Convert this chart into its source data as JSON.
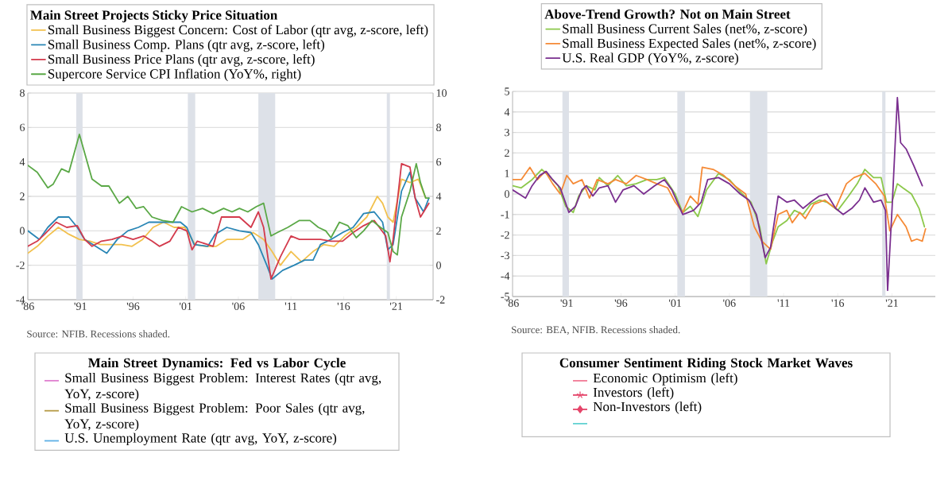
{
  "chart_data": [
    {
      "type": "line",
      "title": "Main Street Projects Sticky Price Situation",
      "legend": "top",
      "grid": "y",
      "xlim": [
        1986,
        2024.5
      ],
      "ylim": [
        -4,
        8
      ],
      "y2lim": [
        -2,
        10
      ],
      "xticks": [
        {
          "value": 1986,
          "label": "'86"
        },
        {
          "value": 1991,
          "label": "'91"
        },
        {
          "value": 1996,
          "label": "'96"
        },
        {
          "value": 2001,
          "label": "'01"
        },
        {
          "value": 2006,
          "label": "'06"
        },
        {
          "value": 2011,
          "label": "'11"
        },
        {
          "value": 2016,
          "label": "'16"
        },
        {
          "value": 2021,
          "label": "'21"
        }
      ],
      "yticks": [
        -4,
        -2,
        0,
        2,
        4,
        6,
        8
      ],
      "y2ticks": [
        -2,
        0,
        2,
        4,
        6,
        8,
        10
      ],
      "bands": [
        {
          "axis": "x",
          "from": 1990.6,
          "to": 1991.2,
          "color": "#dde1e8"
        },
        {
          "axis": "x",
          "from": 2001.2,
          "to": 2001.9,
          "color": "#dde1e8"
        },
        {
          "axis": "x",
          "from": 2007.9,
          "to": 2009.5,
          "color": "#dde1e8"
        },
        {
          "axis": "x",
          "from": 2020.1,
          "to": 2020.4,
          "color": "#dde1e8"
        }
      ],
      "annotations": [
        "Source: NFIB. Recessions shaded."
      ],
      "series": [
        {
          "name": "Small Business Biggest Concern: Cost of Labor (qtr avg, z-score, left)",
          "color": "#f2c14e",
          "x": [
            1986.0,
            1986.9,
            1987.9,
            1988.9,
            1989.9,
            1990.9,
            1991.9,
            1992.9,
            1993.9,
            1994.9,
            1995.9,
            1996.9,
            1997.9,
            1998.9,
            1999.9,
            2000.9,
            2001.9,
            2002.9,
            2003.9,
            2004.9,
            2006.4,
            2007.4,
            2008.4,
            2009.2,
            2010.0,
            2011.0,
            2012.0,
            2013.1,
            2014.1,
            2015.1,
            2016.1,
            2017.2,
            2018.2,
            2019.2,
            2019.7,
            2020.2,
            2020.7,
            2021.5,
            2022.3,
            2023.1,
            2023.8
          ],
          "values": [
            -1.3,
            -0.9,
            -0.3,
            0.2,
            -0.2,
            -0.5,
            -0.6,
            -0.8,
            -0.8,
            -0.8,
            -0.9,
            -0.5,
            0.2,
            0.5,
            0.2,
            0.2,
            -0.8,
            -0.9,
            -0.9,
            -0.5,
            -0.5,
            -0.1,
            -0.5,
            -1.2,
            -2.0,
            -1.2,
            -1.8,
            -1.2,
            -0.8,
            -0.9,
            -0.3,
            0.2,
            0.8,
            2.0,
            1.6,
            0.8,
            0.5,
            3.0,
            2.8,
            3.0,
            1.9
          ]
        },
        {
          "name": "Small Business Comp. Plans (qtr avg, z-score, left)",
          "color": "#2a86b5",
          "x": [
            1986.0,
            1987.1,
            1987.9,
            1988.9,
            1989.9,
            1990.7,
            1991.4,
            1992.2,
            1993.5,
            1994.5,
            1995.5,
            1996.5,
            1997.5,
            1998.5,
            1999.5,
            2000.5,
            2001.1,
            2001.8,
            2003.1,
            2003.8,
            2004.9,
            2006.1,
            2007.2,
            2007.9,
            2008.7,
            2009.2,
            2010.2,
            2011.3,
            2012.3,
            2013.1,
            2013.8,
            2014.8,
            2015.9,
            2016.9,
            2017.9,
            2018.9,
            2019.7,
            2020.2,
            2020.7,
            2021.5,
            2022.3,
            2022.8,
            2023.6,
            2024.1
          ],
          "values": [
            0,
            -0.5,
            0.2,
            0.8,
            0.8,
            0.2,
            -0.5,
            -0.8,
            -1.3,
            -0.5,
            0,
            0.2,
            0.5,
            0.5,
            0.5,
            0.5,
            0.2,
            -0.8,
            -0.9,
            -0.2,
            0.2,
            0.0,
            -0.1,
            -0.8,
            -2.0,
            -2.8,
            -2.3,
            -2.0,
            -1.7,
            -1.7,
            -0.8,
            -0.5,
            -0.1,
            0.2,
            1.0,
            1.1,
            0.5,
            -1.1,
            -0.8,
            2.3,
            3.4,
            1.9,
            1.1,
            1.9
          ]
        },
        {
          "name": "Small Business Price Plans (qtr avg, z-score, left)",
          "color": "#d33a4c",
          "x": [
            1986.0,
            1986.9,
            1987.6,
            1988.7,
            1989.7,
            1990.7,
            1991.4,
            1992.1,
            1993.0,
            1994.0,
            1995.0,
            1996.0,
            1997.0,
            1997.8,
            1998.5,
            1999.5,
            2000.3,
            2001.1,
            2001.6,
            2002.1,
            2003.1,
            2003.6,
            2004.4,
            2005.4,
            2006.1,
            2007.2,
            2007.9,
            2008.4,
            2009.1,
            2010.0,
            2011.0,
            2011.8,
            2012.8,
            2013.8,
            2014.8,
            2015.9,
            2016.9,
            2017.9,
            2018.9,
            2020.0,
            2020.4,
            2020.7,
            2021.5,
            2022.3,
            2022.8,
            2023.3,
            2023.8,
            2024.1
          ],
          "values": [
            -0.9,
            -0.6,
            -0.2,
            0.5,
            0.2,
            0.3,
            -0.5,
            -0.9,
            -0.6,
            -0.5,
            -0.3,
            -0.5,
            -0.3,
            -0.6,
            -0.9,
            -0.6,
            0.2,
            0.0,
            -1.1,
            -0.6,
            -0.8,
            -0.9,
            0.8,
            0.8,
            0.8,
            0.2,
            1.1,
            0.2,
            -2.8,
            -1.5,
            -0.3,
            -0.5,
            -0.5,
            -0.5,
            -0.6,
            -0.6,
            -0.1,
            0.3,
            0.6,
            -0.3,
            -1.8,
            -0.5,
            3.9,
            3.7,
            1.9,
            0.8,
            1.3,
            1.6
          ]
        },
        {
          "name": "Supercore Service CPI Inflation (YoY%, right)",
          "color": "#5aa846",
          "axis": "y2",
          "x": [
            1986.0,
            1986.9,
            1987.9,
            1988.4,
            1989.2,
            1989.9,
            1990.9,
            1992.1,
            1993.0,
            1993.7,
            1994.7,
            1995.5,
            1996.3,
            1997.0,
            1997.8,
            1998.8,
            1999.8,
            2000.6,
            2001.6,
            2002.6,
            2003.6,
            2004.6,
            2005.4,
            2006.1,
            2006.9,
            2007.7,
            2008.4,
            2009.1,
            2009.7,
            2010.7,
            2011.8,
            2012.8,
            2013.6,
            2014.3,
            2014.8,
            2015.6,
            2016.4,
            2017.2,
            2017.9,
            2018.7,
            2019.5,
            2020.2,
            2020.7,
            2021.1,
            2021.5,
            2022.3,
            2022.9,
            2023.3,
            2023.8,
            2024.1
          ],
          "values": [
            5.8,
            5.4,
            4.5,
            4.7,
            5.6,
            5.4,
            7.6,
            5.0,
            4.6,
            4.6,
            3.6,
            4.0,
            3.3,
            3.4,
            2.8,
            2.6,
            2.5,
            3.4,
            3.1,
            3.3,
            3.0,
            3.3,
            3.1,
            3.3,
            3.1,
            3.4,
            3.6,
            1.7,
            1.9,
            2.2,
            2.6,
            2.6,
            2.2,
            2.0,
            1.6,
            2.5,
            2.3,
            1.6,
            2.0,
            2.6,
            2.2,
            1.9,
            0.8,
            0.6,
            2.8,
            4.3,
            5.9,
            4.8,
            3.9,
            3.9
          ]
        }
      ]
    },
    {
      "type": "line",
      "title": "Above-Trend Growth? Not on Main Street",
      "legend": "top",
      "grid": "y",
      "xlim": [
        1986,
        2025
      ],
      "ylim": [
        -5,
        5
      ],
      "xticks": [
        {
          "value": 1986,
          "label": "'86"
        },
        {
          "value": 1991,
          "label": "'91"
        },
        {
          "value": 1996,
          "label": "'96"
        },
        {
          "value": 2001,
          "label": "'01"
        },
        {
          "value": 2006,
          "label": "'06"
        },
        {
          "value": 2011,
          "label": "'11"
        },
        {
          "value": 2016,
          "label": "'16"
        },
        {
          "value": 2021,
          "label": "'21"
        }
      ],
      "yticks": [
        -5,
        -4,
        -3,
        -2,
        -1,
        0,
        1,
        2,
        3,
        4,
        5
      ],
      "bands": [
        {
          "axis": "x",
          "from": 1990.6,
          "to": 1991.2,
          "color": "#dde1e8"
        },
        {
          "axis": "x",
          "from": 2001.2,
          "to": 2001.9,
          "color": "#dde1e8"
        },
        {
          "axis": "x",
          "from": 2007.9,
          "to": 2009.5,
          "color": "#dde1e8"
        },
        {
          "axis": "x",
          "from": 2020.1,
          "to": 2020.4,
          "color": "#dde1e8"
        }
      ],
      "annotations": [
        "Source: BEA, NFIB. Recessions shaded."
      ],
      "series": [
        {
          "name": "Small Business Current Sales (net%, z-score)",
          "color": "#8cc84b",
          "x": [
            1986.0,
            1986.8,
            1987.8,
            1988.7,
            1989.5,
            1990.2,
            1990.9,
            1991.6,
            1992.1,
            1992.8,
            1993.6,
            1994.0,
            1994.8,
            1995.7,
            1996.5,
            1997.4,
            1998.4,
            1999.3,
            2000.0,
            2001.0,
            2001.7,
            2002.4,
            2003.1,
            2003.9,
            2005.0,
            2006.0,
            2007.0,
            2008.0,
            2008.8,
            2009.4,
            2010.0,
            2010.5,
            2011.3,
            2012.0,
            2012.8,
            2013.5,
            2014.3,
            2015.0,
            2016.0,
            2017.0,
            2017.8,
            2018.5,
            2019.3,
            2020.0,
            2020.5,
            2021.0,
            2021.5,
            2022.0,
            2022.8,
            2023.5,
            2024.0
          ],
          "values": [
            0.4,
            0.3,
            0.7,
            1.2,
            0.8,
            0.4,
            -0.6,
            -0.9,
            -0.1,
            0.4,
            0.2,
            0.8,
            0.4,
            0.9,
            0.4,
            0.5,
            0.7,
            0.7,
            0.8,
            0.0,
            -0.9,
            -0.6,
            -1.1,
            0.2,
            1.0,
            0.7,
            0.1,
            -0.4,
            -1.6,
            -3.4,
            -2.3,
            -1.6,
            -1.3,
            -0.8,
            -1.0,
            -0.5,
            -0.3,
            -0.4,
            -0.8,
            -0.1,
            0.5,
            1.2,
            0.8,
            0.8,
            -0.4,
            -0.4,
            0.5,
            0.3,
            0.0,
            -0.7,
            -1.6
          ]
        },
        {
          "name": "Small Business Expected Sales (net%, z-score)",
          "color": "#f58a36",
          "x": [
            1986.0,
            1986.8,
            1987.6,
            1988.3,
            1989.0,
            1989.7,
            1990.4,
            1991.0,
            1991.6,
            1992.4,
            1993.1,
            1993.8,
            1994.8,
            1995.5,
            1996.5,
            1997.4,
            1998.4,
            1999.3,
            2000.3,
            2001.0,
            2001.7,
            2002.4,
            2003.1,
            2003.5,
            2004.5,
            2005.5,
            2006.5,
            2007.5,
            2008.3,
            2009.0,
            2009.8,
            2010.5,
            2011.3,
            2011.8,
            2012.5,
            2013.0,
            2013.8,
            2014.8,
            2015.8,
            2016.8,
            2017.5,
            2018.5,
            2019.5,
            2020.3,
            2020.8,
            2021.5,
            2022.3,
            2022.8,
            2023.3,
            2023.8,
            2024.1
          ],
          "values": [
            0.7,
            0.7,
            1.3,
            0.7,
            1.1,
            0.5,
            0.0,
            0.9,
            0.5,
            0.7,
            -0.2,
            0.7,
            0.5,
            0.7,
            0.5,
            0.9,
            0.7,
            0.5,
            0.3,
            -0.4,
            -0.9,
            -0.1,
            -0.5,
            1.3,
            1.2,
            0.9,
            0.4,
            0.0,
            -1.6,
            -2.3,
            -2.7,
            -1.0,
            -0.8,
            -1.4,
            -0.9,
            -1.2,
            -0.5,
            -0.3,
            -0.7,
            0.5,
            0.8,
            1.0,
            0.5,
            -0.1,
            -1.8,
            -1.0,
            -1.6,
            -2.3,
            -2.2,
            -2.3,
            -1.7
          ]
        },
        {
          "name": "U.S. Real GDP (YoY%, z-score)",
          "color": "#7a2f8f",
          "x": [
            1986.0,
            1986.6,
            1987.2,
            1987.8,
            1988.5,
            1989.1,
            1989.7,
            1990.4,
            1991.2,
            1991.8,
            1992.4,
            1992.8,
            1993.4,
            1994.0,
            1994.8,
            1995.5,
            1996.2,
            1997.2,
            1998.1,
            1999.1,
            2000.0,
            2000.7,
            2001.7,
            2002.7,
            2003.4,
            2004.0,
            2005.0,
            2006.0,
            2007.0,
            2007.8,
            2008.5,
            2009.3,
            2009.8,
            2010.5,
            2011.3,
            2012.0,
            2012.8,
            2013.5,
            2014.3,
            2015.0,
            2015.8,
            2016.5,
            2017.3,
            2018.0,
            2018.5,
            2019.3,
            2020.0,
            2020.4,
            2020.6,
            2021.0,
            2021.5,
            2021.8,
            2022.3,
            2023.0,
            2023.8
          ],
          "values": [
            0.2,
            0.0,
            -0.2,
            0.4,
            0.9,
            1.1,
            0.7,
            0.3,
            -0.9,
            -0.6,
            0.2,
            0.4,
            -0.1,
            0.3,
            0.4,
            -0.4,
            0.2,
            0.4,
            0.0,
            0.4,
            0.7,
            0.2,
            -1.0,
            -0.8,
            -0.4,
            0.7,
            0.8,
            0.5,
            0.0,
            -0.3,
            -1.0,
            -3.1,
            -2.6,
            -0.1,
            -0.4,
            -0.3,
            -0.7,
            -0.4,
            -0.1,
            0.0,
            -0.7,
            -1.0,
            -0.7,
            -0.3,
            0.3,
            -0.4,
            -0.3,
            -0.8,
            -4.7,
            -0.8,
            4.7,
            2.5,
            2.2,
            1.4,
            0.4
          ]
        }
      ]
    },
    {
      "type": "other",
      "title": "Main Street Dynamics: Fed vs Labor Cycle",
      "legend": "top",
      "series": [
        {
          "name": "Small Business Biggest Problem: Interest Rates (qtr avg, YoY, z-score)",
          "color": "#e07fcf"
        },
        {
          "name": "Small Business Biggest Problem: Poor Sales (qtr avg, YoY, z-score)",
          "color": "#b59a45"
        },
        {
          "name": "U.S. Unemployment Rate (qtr avg, YoY, z-score)",
          "color": "#5db0e6"
        }
      ]
    },
    {
      "type": "other",
      "title": "Consumer Sentiment Riding Stock Market Waves",
      "legend": "top",
      "series": [
        {
          "name": "Economic Optimism (left)",
          "color": "#f27a96"
        },
        {
          "name": "Investors (left)",
          "color": "#e5456a",
          "marker": "star"
        },
        {
          "name": "Non-Investors (left)",
          "color": "#e5456a",
          "marker": "diamond"
        },
        {
          "color": "#63d2d2"
        }
      ]
    }
  ]
}
